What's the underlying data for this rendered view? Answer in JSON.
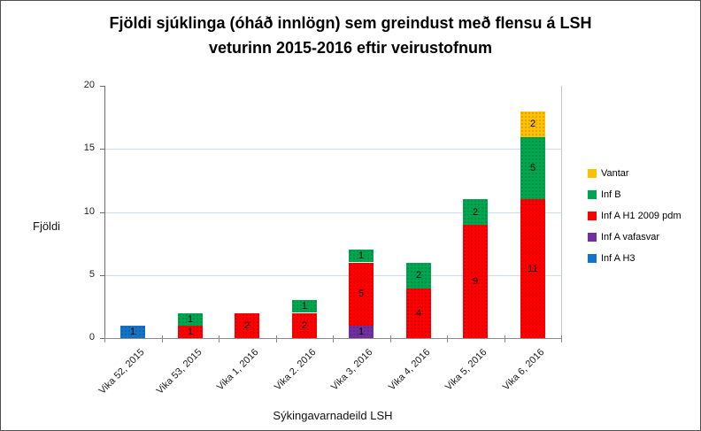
{
  "chart_data": {
    "type": "bar",
    "stacked": true,
    "title_lines": [
      "Fjöldi sjúklinga (óháð innlögn) sem greindust með flensu á LSH",
      "veturinn 2015-2016 eftir veirustofnum"
    ],
    "ylabel": "Fjöldi",
    "xlabel": "Sýkingavarnadeild LSH",
    "categories": [
      "Vika 52, 2015",
      "Vika 53, 2015",
      "Vika 1, 2016",
      "Vika 2. 2016",
      "Vika 3, 2016",
      "Vika 4, 2016",
      "Vika 5, 2016",
      "Vika 6, 2016"
    ],
    "series": [
      {
        "name": "Inf A H3",
        "color": "#1373C4",
        "values": [
          1,
          0,
          0,
          0,
          0,
          0,
          0,
          0
        ]
      },
      {
        "name": "Inf A vafasvar",
        "color": "#7030A0",
        "values": [
          0,
          0,
          0,
          0,
          1,
          0,
          0,
          0
        ]
      },
      {
        "name": "Inf A H1 2009 pdm",
        "color": "#FF0000",
        "values": [
          0,
          1,
          2,
          2,
          5,
          4,
          9,
          11
        ]
      },
      {
        "name": "Inf B",
        "color": "#00A550",
        "values": [
          0,
          1,
          0,
          1,
          1,
          2,
          2,
          5
        ]
      },
      {
        "name": "Vantar",
        "color": "#FFC000",
        "values": [
          0,
          0,
          0,
          0,
          0,
          0,
          0,
          2
        ]
      }
    ],
    "legend_order": [
      "Vantar",
      "Inf B",
      "Inf A H1 2009 pdm",
      "Inf A vafasvar",
      "Inf A H3"
    ],
    "legend_position": "right",
    "yticks": [
      0,
      5,
      10,
      15,
      20
    ],
    "ylim": [
      0,
      20
    ],
    "grid": true,
    "data_labels": true,
    "totals": [
      1,
      2,
      2,
      3,
      7,
      6,
      11,
      18
    ]
  }
}
